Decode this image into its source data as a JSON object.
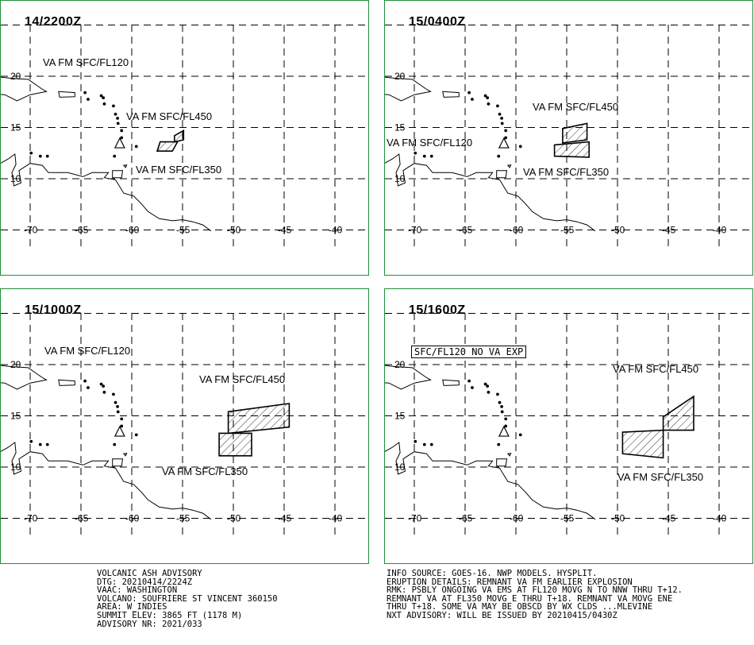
{
  "panels": [
    {
      "time": "14/2200Z",
      "labels": [
        {
          "text": "VA FM SFC/FL120",
          "x": 53,
          "y": 70
        },
        {
          "text": "VA FM SFC/FL450",
          "x": 158,
          "y": 138
        },
        {
          "text": "VA FM SFC/FL350",
          "x": 170,
          "y": 205
        }
      ],
      "areas": [
        {
          "name": "ash-area-fl450",
          "points": [
            [
              -55.8,
              14.2
            ],
            [
              -54.9,
              14.7
            ],
            [
              -54.9,
              13.8
            ],
            [
              -55.8,
              13.6
            ]
          ]
        },
        {
          "name": "ash-area-fl350",
          "points": [
            [
              -57.5,
              12.7
            ],
            [
              -56,
              12.7
            ],
            [
              -55.5,
              13.6
            ],
            [
              -57.2,
              13.6
            ]
          ]
        }
      ]
    },
    {
      "time": "15/0400Z",
      "labels": [
        {
          "text": "VA FM SFC/FL450",
          "x": 186,
          "y": 126
        },
        {
          "text": "VA FM SFC/FL120",
          "x": 2,
          "y": 171
        },
        {
          "text": "VA FM SFC/FL350",
          "x": 174,
          "y": 208
        }
      ],
      "areas": [
        {
          "name": "ash-area-fl450",
          "points": [
            [
              -55.4,
              14.9
            ],
            [
              -53,
              15.4
            ],
            [
              -53,
              13.8
            ],
            [
              -55.4,
              13.5
            ]
          ]
        },
        {
          "name": "ash-area-fl350",
          "points": [
            [
              -56.2,
              13.3
            ],
            [
              -52.8,
              13.6
            ],
            [
              -52.8,
              12.1
            ],
            [
              -56.2,
              12.2
            ]
          ]
        }
      ]
    },
    {
      "time": "15/1000Z",
      "labels": [
        {
          "text": "VA FM SFC/FL120",
          "x": 55,
          "y": 70
        },
        {
          "text": "VA FM SFC/FL450",
          "x": 250,
          "y": 106
        },
        {
          "text": "VA FM SFC/FL350",
          "x": 203,
          "y": 222
        }
      ],
      "areas": [
        {
          "name": "ash-area-fl450",
          "points": [
            [
              -50.5,
              15.4
            ],
            [
              -44.5,
              16.2
            ],
            [
              -44.5,
              13.9
            ],
            [
              -50.5,
              13.3
            ]
          ]
        },
        {
          "name": "ash-area-fl350",
          "points": [
            [
              -51.4,
              13.3
            ],
            [
              -48.2,
              13.3
            ],
            [
              -48.2,
              11.1
            ],
            [
              -51.4,
              11.1
            ]
          ]
        }
      ]
    },
    {
      "time": "15/1600Z",
      "labels": [
        {
          "text": "VA FM SFC/FL450",
          "x": 287,
          "y": 93
        },
        {
          "text": "VA FM SFC/FL350",
          "x": 293,
          "y": 229
        }
      ],
      "boxed": {
        "text": "SFC/FL120 NO VA EXP",
        "x": 33,
        "y": 71
      },
      "areas": [
        {
          "name": "ash-area-fl450",
          "points": [
            [
              -45.5,
              14.9
            ],
            [
              -42.5,
              16.9
            ],
            [
              -42.5,
              13.6
            ],
            [
              -45.5,
              13.6
            ]
          ]
        },
        {
          "name": "ash-area-fl350",
          "points": [
            [
              -49.5,
              13.4
            ],
            [
              -45.5,
              13.6
            ],
            [
              -45.5,
              10.9
            ],
            [
              -49.5,
              11.3
            ]
          ]
        }
      ]
    }
  ],
  "axis": {
    "lon_labels": [
      "-70",
      "-65",
      "-60",
      "-55",
      "-50",
      "-45",
      "-40"
    ],
    "lat_labels": [
      "20",
      "15",
      "10"
    ]
  },
  "advisory_left": [
    "VOLCANIC ASH ADVISORY",
    "DTG: 20210414/2224Z",
    "VAAC: WASHINGTON",
    "VOLCANO: SOUFRIERE ST VINCENT 360150",
    "AREA: W_INDIES",
    "SUMMIT ELEV: 3865 FT (1178 M)",
    "ADVISORY NR: 2021/033"
  ],
  "advisory_right": [
    "INFO SOURCE: GOES-16. NWP MODELS. HYSPLIT.",
    "ERUPTION DETAILS: REMNANT VA FM EARLIER EXPLOSION",
    "RMK: PSBLY ONGOING VA EMS AT FL120 MOVG N TO NNW THRU T+12.",
    "REMNANT VA AT FL350 MOVG E THRU T+18. REMNANT VA MOVG ENE",
    "THRU T+18. SOME VA MAY BE OBSCD BY WX CLDS ...MLEVINE",
    "NXT ADVISORY: WILL BE ISSUED BY 20210415/0430Z"
  ],
  "colors": {
    "border": "#1f8f3a",
    "ink": "#000000"
  }
}
